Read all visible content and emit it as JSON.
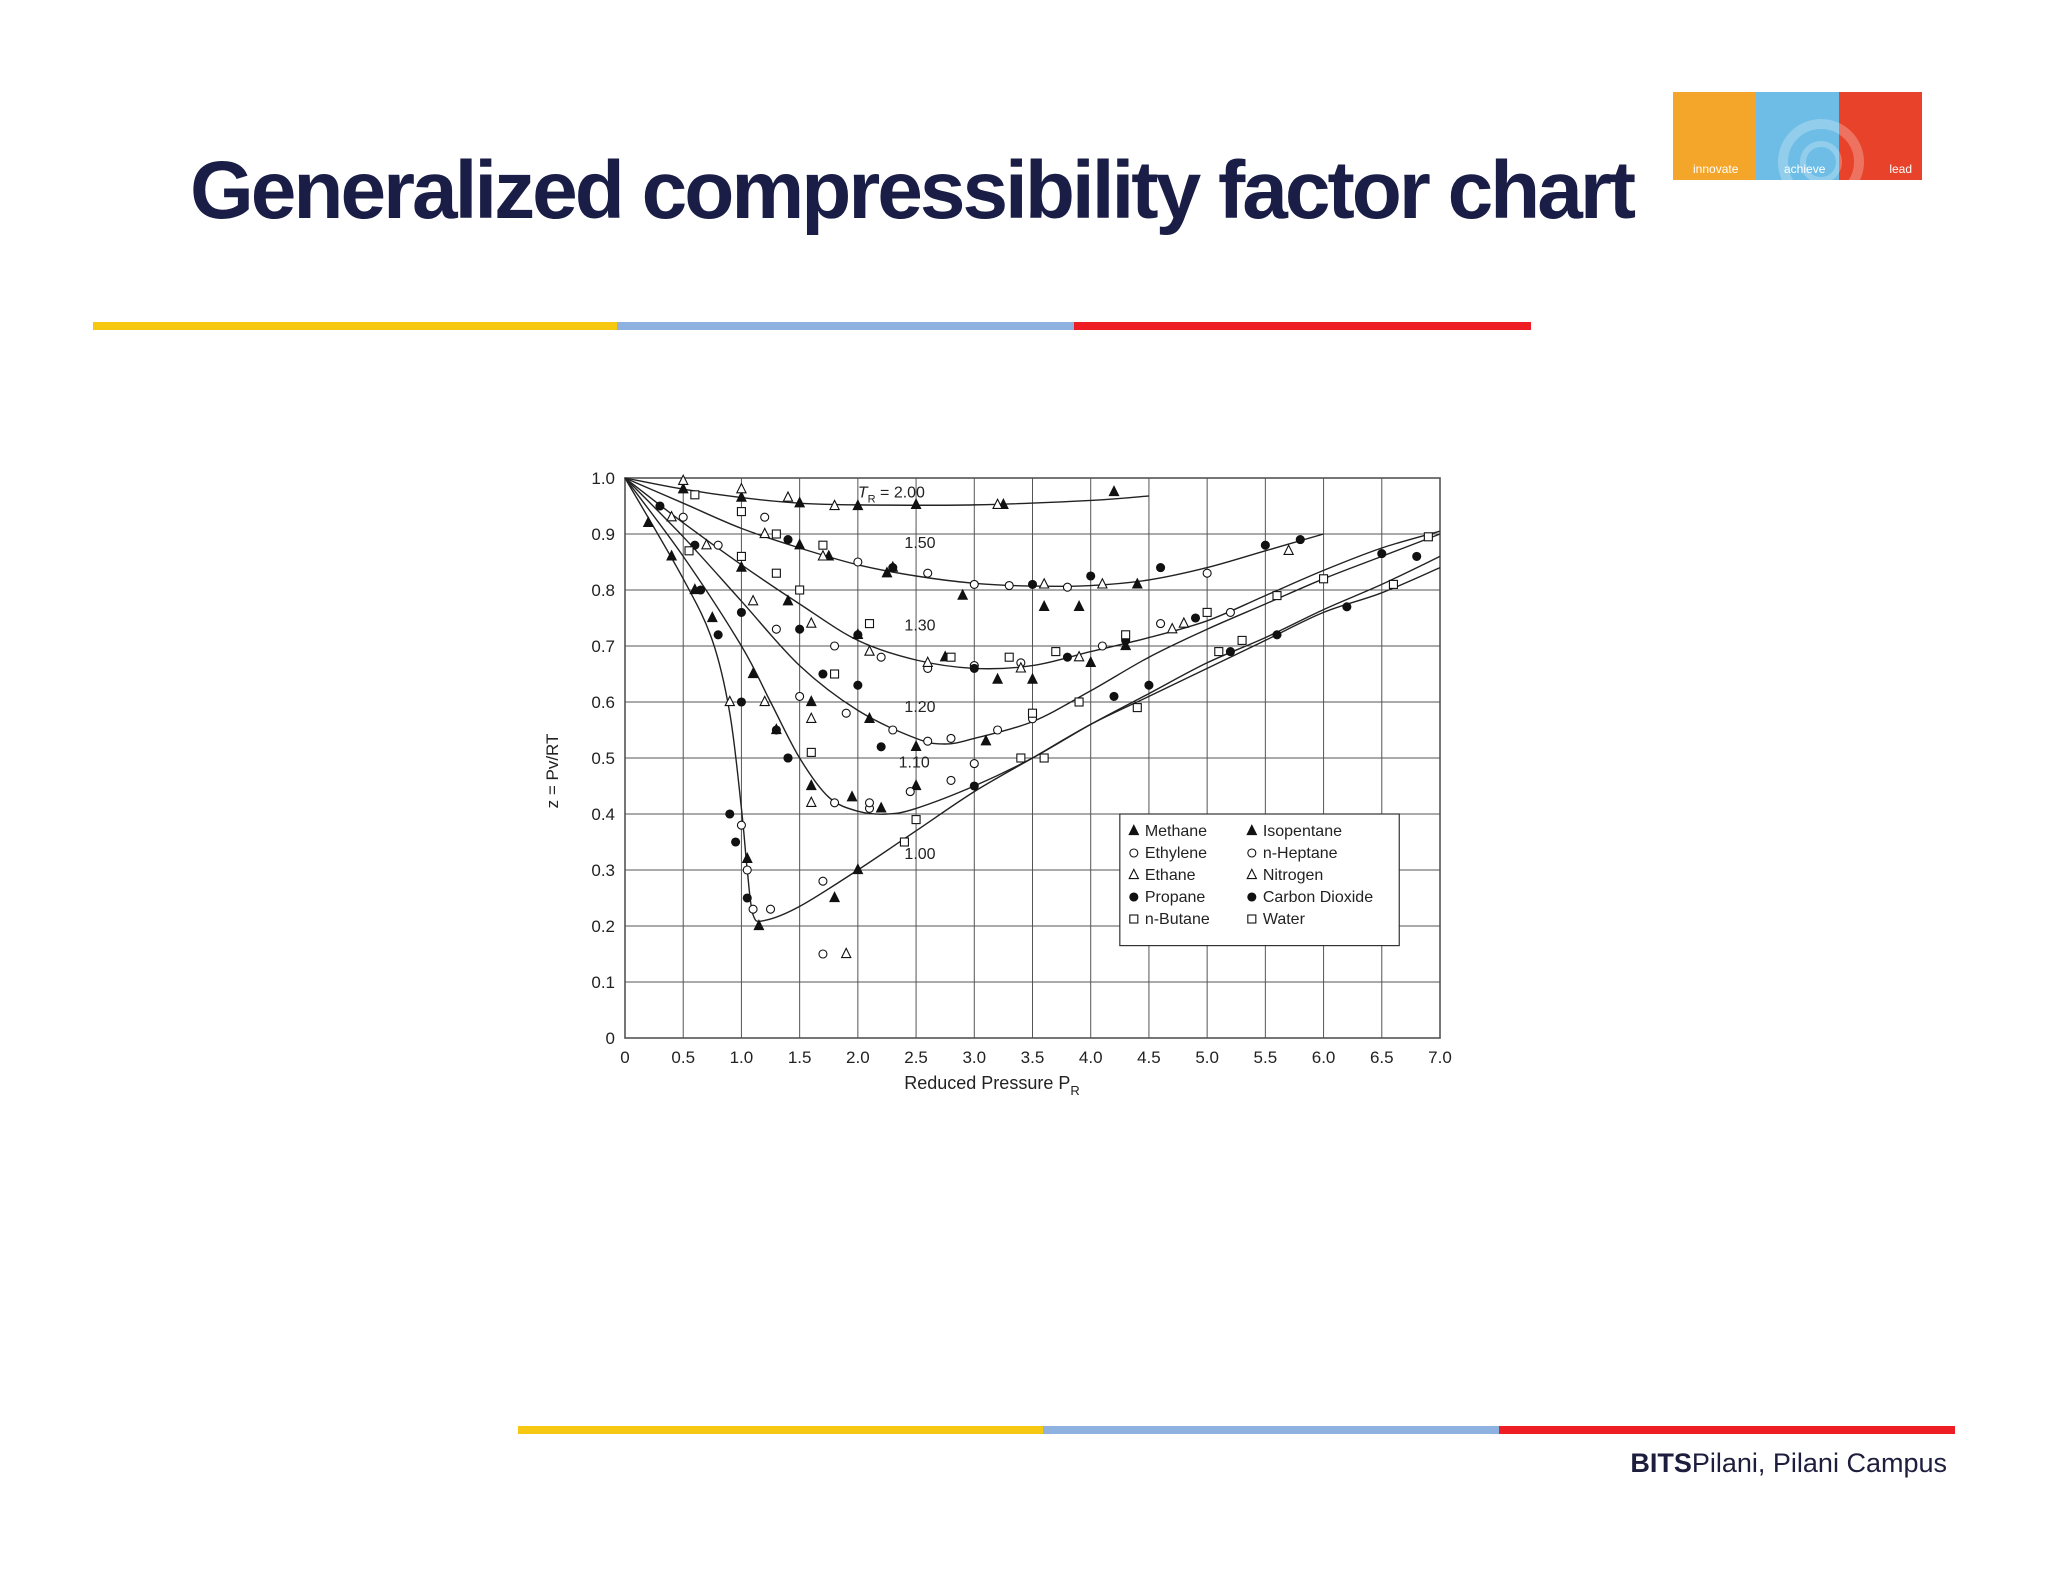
{
  "slide": {
    "title": "Generalized compressibility factor chart",
    "footer_bold": "BITS",
    "footer_rest": "Pilani, Pilani Campus"
  },
  "logo": {
    "words": [
      "innovate",
      "achieve",
      "lead"
    ],
    "colors": [
      "#f4a62a",
      "#6dbde6",
      "#e8432a"
    ]
  },
  "colors": {
    "title": "#1a1d45",
    "rule_yellow": "#f7c812",
    "rule_blue": "#8eb2e0",
    "rule_red": "#ee1c23"
  },
  "chart_data": {
    "type": "scatter",
    "xlabel": "Reduced Pressure P",
    "xlabel_sub": "R",
    "ylabel": "z = Pv/RT",
    "xlim": [
      0,
      7.0
    ],
    "ylim": [
      0,
      1.0
    ],
    "xticks": [
      "0",
      "0.5",
      "1.0",
      "1.5",
      "2.0",
      "2.5",
      "3.0",
      "3.5",
      "4.0",
      "4.5",
      "5.0",
      "5.5",
      "6.0",
      "6.5",
      "7.0"
    ],
    "yticks": [
      "0",
      "0.1",
      "0.2",
      "0.3",
      "0.4",
      "0.5",
      "0.6",
      "0.7",
      "0.8",
      "0.9",
      "1.0"
    ],
    "grid": true,
    "legend_position": "lower-right",
    "curves": [
      {
        "label": "= 2.00",
        "label_prefix": "T",
        "label_sub": "R",
        "label_at": [
          2.0,
          0.965
        ],
        "points": [
          [
            0,
            1.0
          ],
          [
            0.5,
            0.98
          ],
          [
            1.0,
            0.965
          ],
          [
            1.5,
            0.955
          ],
          [
            2.0,
            0.952
          ],
          [
            3.0,
            0.952
          ],
          [
            4.0,
            0.96
          ],
          [
            4.5,
            0.968
          ]
        ]
      },
      {
        "label": "1.50",
        "label_at": [
          2.4,
          0.875
        ],
        "points": [
          [
            0,
            1.0
          ],
          [
            0.5,
            0.955
          ],
          [
            1.0,
            0.91
          ],
          [
            1.5,
            0.875
          ],
          [
            2.0,
            0.845
          ],
          [
            2.5,
            0.825
          ],
          [
            3.0,
            0.812
          ],
          [
            3.5,
            0.807
          ],
          [
            4.0,
            0.808
          ],
          [
            4.5,
            0.818
          ],
          [
            5.0,
            0.84
          ],
          [
            5.5,
            0.87
          ],
          [
            6.0,
            0.9
          ]
        ]
      },
      {
        "label": "1.30",
        "label_at": [
          2.4,
          0.728
        ],
        "points": [
          [
            0,
            1.0
          ],
          [
            0.5,
            0.92
          ],
          [
            1.0,
            0.845
          ],
          [
            1.5,
            0.775
          ],
          [
            2.0,
            0.71
          ],
          [
            2.5,
            0.675
          ],
          [
            3.0,
            0.66
          ],
          [
            3.5,
            0.665
          ],
          [
            4.0,
            0.69
          ],
          [
            4.5,
            0.715
          ],
          [
            5.0,
            0.745
          ],
          [
            5.5,
            0.79
          ],
          [
            6.0,
            0.835
          ],
          [
            6.5,
            0.875
          ],
          [
            7.0,
            0.905
          ]
        ]
      },
      {
        "label": "1.20",
        "label_at": [
          2.4,
          0.582
        ],
        "points": [
          [
            0,
            1.0
          ],
          [
            0.5,
            0.895
          ],
          [
            1.0,
            0.78
          ],
          [
            1.5,
            0.665
          ],
          [
            2.0,
            0.585
          ],
          [
            2.5,
            0.535
          ],
          [
            2.75,
            0.525
          ],
          [
            3.0,
            0.535
          ],
          [
            3.5,
            0.565
          ],
          [
            4.0,
            0.62
          ],
          [
            4.5,
            0.68
          ],
          [
            5.0,
            0.73
          ],
          [
            5.5,
            0.775
          ],
          [
            6.0,
            0.82
          ],
          [
            6.5,
            0.86
          ],
          [
            7.0,
            0.9
          ]
        ]
      },
      {
        "label": "1.10",
        "label_at": [
          2.35,
          0.483
        ],
        "points": [
          [
            0,
            1.0
          ],
          [
            0.5,
            0.86
          ],
          [
            1.0,
            0.7
          ],
          [
            1.25,
            0.6
          ],
          [
            1.5,
            0.5
          ],
          [
            1.75,
            0.43
          ],
          [
            2.0,
            0.405
          ],
          [
            2.25,
            0.4
          ],
          [
            2.5,
            0.41
          ],
          [
            3.0,
            0.45
          ],
          [
            3.5,
            0.5
          ],
          [
            4.0,
            0.56
          ],
          [
            4.5,
            0.615
          ],
          [
            5.0,
            0.67
          ],
          [
            5.5,
            0.715
          ],
          [
            6.0,
            0.765
          ],
          [
            6.5,
            0.81
          ],
          [
            7.0,
            0.86
          ]
        ]
      },
      {
        "label": "1.00",
        "label_at": [
          2.4,
          0.32
        ],
        "points": [
          [
            0,
            1.0
          ],
          [
            0.5,
            0.82
          ],
          [
            0.75,
            0.71
          ],
          [
            0.9,
            0.58
          ],
          [
            1.0,
            0.41
          ],
          [
            1.05,
            0.3
          ],
          [
            1.1,
            0.22
          ],
          [
            1.2,
            0.21
          ],
          [
            1.5,
            0.235
          ],
          [
            2.0,
            0.3
          ],
          [
            2.5,
            0.37
          ],
          [
            3.0,
            0.44
          ],
          [
            3.5,
            0.5
          ],
          [
            4.0,
            0.56
          ],
          [
            4.5,
            0.61
          ],
          [
            5.0,
            0.66
          ],
          [
            5.5,
            0.71
          ],
          [
            6.0,
            0.76
          ],
          [
            6.5,
            0.795
          ],
          [
            7.0,
            0.84
          ]
        ]
      }
    ],
    "legend": [
      {
        "marker": "filled-triangle",
        "label": "Methane"
      },
      {
        "marker": "filled-triangle",
        "label": "Isopentane"
      },
      {
        "marker": "open-circle",
        "label": "Ethylene"
      },
      {
        "marker": "open-circle",
        "label": "n-Heptane"
      },
      {
        "marker": "open-triangle",
        "label": "Ethane"
      },
      {
        "marker": "open-triangle",
        "label": "Nitrogen"
      },
      {
        "marker": "filled-circle",
        "label": "Propane"
      },
      {
        "marker": "filled-circle",
        "label": "Carbon Dioxide"
      },
      {
        "marker": "open-square",
        "label": "n-Butane"
      },
      {
        "marker": "open-square",
        "label": "Water"
      }
    ],
    "markers": [
      {
        "marker": "filled-triangle",
        "points": [
          [
            0.5,
            0.98
          ],
          [
            1.0,
            0.965
          ],
          [
            1.5,
            0.955
          ],
          [
            2.0,
            0.95
          ],
          [
            2.5,
            0.952
          ],
          [
            3.25,
            0.952
          ],
          [
            4.2,
            0.975
          ],
          [
            1.5,
            0.88
          ],
          [
            1.75,
            0.86
          ],
          [
            2.25,
            0.83
          ],
          [
            2.9,
            0.79
          ],
          [
            3.6,
            0.77
          ],
          [
            3.9,
            0.77
          ],
          [
            4.4,
            0.81
          ],
          [
            1.0,
            0.84
          ],
          [
            1.4,
            0.78
          ],
          [
            2.0,
            0.72
          ],
          [
            2.75,
            0.68
          ],
          [
            3.2,
            0.64
          ],
          [
            3.5,
            0.64
          ],
          [
            4.0,
            0.67
          ],
          [
            4.3,
            0.7
          ],
          [
            1.1,
            0.65
          ],
          [
            1.6,
            0.6
          ],
          [
            2.1,
            0.57
          ],
          [
            2.5,
            0.52
          ],
          [
            3.1,
            0.53
          ],
          [
            0.75,
            0.75
          ],
          [
            1.3,
            0.55
          ],
          [
            1.6,
            0.45
          ],
          [
            1.95,
            0.43
          ],
          [
            2.2,
            0.41
          ],
          [
            2.5,
            0.45
          ],
          [
            1.05,
            0.32
          ],
          [
            1.15,
            0.2
          ],
          [
            1.8,
            0.25
          ],
          [
            2.0,
            0.3
          ],
          [
            0.6,
            0.8
          ],
          [
            0.2,
            0.92
          ],
          [
            0.4,
            0.86
          ]
        ]
      },
      {
        "marker": "open-circle",
        "points": [
          [
            1.2,
            0.93
          ],
          [
            2.0,
            0.85
          ],
          [
            2.6,
            0.83
          ],
          [
            3.0,
            0.81
          ],
          [
            3.3,
            0.808
          ],
          [
            3.8,
            0.805
          ],
          [
            5.0,
            0.83
          ],
          [
            1.3,
            0.73
          ],
          [
            1.8,
            0.7
          ],
          [
            2.2,
            0.68
          ],
          [
            2.6,
            0.66
          ],
          [
            3.0,
            0.665
          ],
          [
            3.4,
            0.67
          ],
          [
            1.5,
            0.61
          ],
          [
            1.9,
            0.58
          ],
          [
            2.3,
            0.55
          ],
          [
            2.6,
            0.53
          ],
          [
            2.8,
            0.535
          ],
          [
            3.2,
            0.55
          ],
          [
            3.5,
            0.57
          ],
          [
            1.4,
            0.5
          ],
          [
            1.8,
            0.42
          ],
          [
            2.1,
            0.41
          ],
          [
            2.45,
            0.44
          ],
          [
            2.8,
            0.46
          ],
          [
            3.0,
            0.49
          ],
          [
            1.0,
            0.38
          ],
          [
            1.05,
            0.3
          ],
          [
            1.1,
            0.23
          ],
          [
            1.25,
            0.23
          ],
          [
            1.7,
            0.28
          ],
          [
            1.7,
            0.15
          ],
          [
            2.1,
            0.42
          ],
          [
            4.1,
            0.7
          ],
          [
            4.6,
            0.74
          ],
          [
            5.2,
            0.76
          ],
          [
            0.5,
            0.93
          ],
          [
            0.8,
            0.88
          ]
        ]
      },
      {
        "marker": "open-triangle",
        "points": [
          [
            0.5,
            0.995
          ],
          [
            1.0,
            0.98
          ],
          [
            1.4,
            0.965
          ],
          [
            1.8,
            0.95
          ],
          [
            3.2,
            0.952
          ],
          [
            1.2,
            0.9
          ],
          [
            1.7,
            0.86
          ],
          [
            2.3,
            0.84
          ],
          [
            3.6,
            0.81
          ],
          [
            4.1,
            0.81
          ],
          [
            5.7,
            0.87
          ],
          [
            1.1,
            0.78
          ],
          [
            1.6,
            0.74
          ],
          [
            2.1,
            0.69
          ],
          [
            2.6,
            0.67
          ],
          [
            3.4,
            0.66
          ],
          [
            3.9,
            0.68
          ],
          [
            4.8,
            0.74
          ],
          [
            1.2,
            0.6
          ],
          [
            1.6,
            0.57
          ],
          [
            0.9,
            0.6
          ],
          [
            1.6,
            0.42
          ],
          [
            1.9,
            0.15
          ],
          [
            0.4,
            0.93
          ],
          [
            0.7,
            0.88
          ],
          [
            4.7,
            0.73
          ]
        ]
      },
      {
        "marker": "filled-circle",
        "points": [
          [
            1.4,
            0.89
          ],
          [
            2.3,
            0.84
          ],
          [
            3.5,
            0.81
          ],
          [
            4.0,
            0.825
          ],
          [
            4.6,
            0.84
          ],
          [
            5.5,
            0.88
          ],
          [
            5.8,
            0.89
          ],
          [
            1.0,
            0.76
          ],
          [
            1.5,
            0.73
          ],
          [
            2.0,
            0.72
          ],
          [
            3.0,
            0.66
          ],
          [
            3.8,
            0.68
          ],
          [
            1.7,
            0.65
          ],
          [
            2.0,
            0.63
          ],
          [
            1.3,
            0.55
          ],
          [
            3.5,
            0.58
          ],
          [
            4.2,
            0.61
          ],
          [
            1.0,
            0.6
          ],
          [
            0.8,
            0.72
          ],
          [
            0.65,
            0.8
          ],
          [
            0.9,
            0.4
          ],
          [
            0.95,
            0.35
          ],
          [
            1.05,
            0.25
          ],
          [
            1.4,
            0.5
          ],
          [
            2.2,
            0.52
          ],
          [
            3.0,
            0.45
          ],
          [
            4.5,
            0.63
          ],
          [
            5.2,
            0.69
          ],
          [
            5.6,
            0.72
          ],
          [
            6.2,
            0.77
          ],
          [
            6.5,
            0.865
          ],
          [
            6.8,
            0.86
          ],
          [
            4.9,
            0.75
          ],
          [
            4.3,
            0.71
          ],
          [
            0.6,
            0.88
          ],
          [
            0.3,
            0.95
          ]
        ]
      },
      {
        "marker": "open-square",
        "points": [
          [
            0.6,
            0.97
          ],
          [
            1.0,
            0.94
          ],
          [
            1.3,
            0.9
          ],
          [
            1.7,
            0.88
          ],
          [
            1.3,
            0.83
          ],
          [
            1.5,
            0.8
          ],
          [
            2.1,
            0.74
          ],
          [
            2.8,
            0.68
          ],
          [
            3.3,
            0.68
          ],
          [
            3.7,
            0.69
          ],
          [
            4.3,
            0.72
          ],
          [
            5.0,
            0.76
          ],
          [
            5.6,
            0.79
          ],
          [
            6.0,
            0.82
          ],
          [
            6.6,
            0.81
          ],
          [
            6.9,
            0.895
          ],
          [
            1.8,
            0.65
          ],
          [
            3.5,
            0.58
          ],
          [
            3.9,
            0.6
          ],
          [
            4.4,
            0.59
          ],
          [
            1.6,
            0.51
          ],
          [
            2.4,
            0.35
          ],
          [
            2.5,
            0.39
          ],
          [
            3.4,
            0.5
          ],
          [
            3.6,
            0.5
          ],
          [
            5.1,
            0.69
          ],
          [
            5.3,
            0.71
          ],
          [
            1.0,
            0.86
          ],
          [
            0.55,
            0.87
          ]
        ]
      }
    ]
  }
}
